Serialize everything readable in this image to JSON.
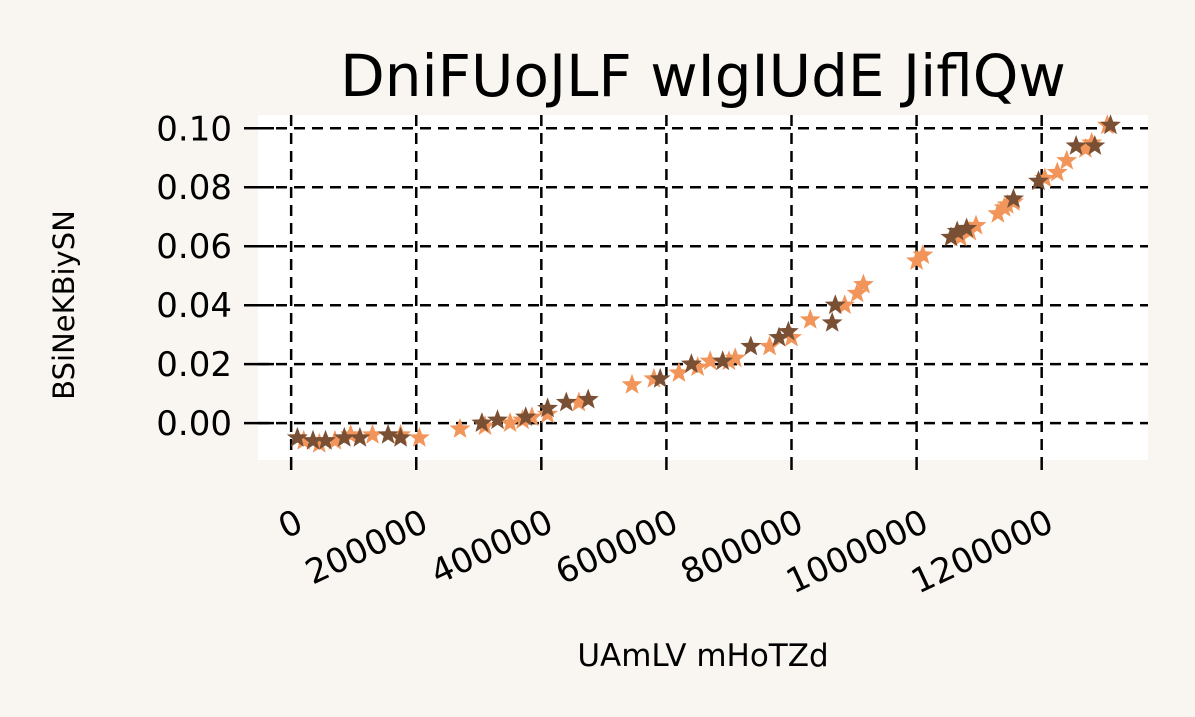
{
  "chart_data": {
    "type": "scatter",
    "title": "DniFUoJLF wIgIUdE JiflQw",
    "xlabel": "UAmLV mHoTZd",
    "ylabel": "BSiNeKBiySN",
    "xlim": [
      -53000,
      1370000
    ],
    "ylim": [
      -0.0125,
      0.1045
    ],
    "xticks": [
      0,
      200000,
      400000,
      600000,
      800000,
      1000000,
      1200000
    ],
    "xtick_labels": [
      "0",
      "200000",
      "400000",
      "600000",
      "800000",
      "1000000",
      "1200000"
    ],
    "yticks": [
      0.0,
      0.02,
      0.04,
      0.06,
      0.08,
      0.1
    ],
    "ytick_labels": [
      "0.00",
      "0.02",
      "0.04",
      "0.06",
      "0.08",
      "0.10"
    ],
    "grid": true,
    "marker": "star",
    "colors": {
      "light": "#f2955b",
      "dark": "#7a5034",
      "background": "#f9f6f1",
      "plot_bg": "#ffffff"
    },
    "series": [
      {
        "color": "light",
        "x": [
          20000,
          45000,
          70000,
          95000,
          130000,
          175000,
          205000,
          270000,
          310000,
          350000,
          370000,
          385000,
          410000,
          460000,
          545000,
          580000,
          620000,
          650000,
          670000,
          700000,
          710000,
          765000,
          800000,
          830000,
          885000,
          905000,
          915000,
          1000000,
          1010000,
          1070000,
          1085000,
          1095000,
          1130000,
          1140000,
          1145000,
          1155000,
          1205000,
          1225000,
          1240000,
          1270000,
          1280000,
          1305000
        ],
        "y": [
          -0.006,
          -0.007,
          -0.006,
          -0.004,
          -0.004,
          -0.004,
          -0.005,
          -0.002,
          -0.001,
          0.0,
          0.001,
          0.002,
          0.003,
          0.007,
          0.013,
          0.015,
          0.017,
          0.019,
          0.021,
          0.021,
          0.022,
          0.026,
          0.029,
          0.035,
          0.04,
          0.044,
          0.047,
          0.055,
          0.057,
          0.063,
          0.065,
          0.067,
          0.071,
          0.073,
          0.074,
          0.075,
          0.083,
          0.085,
          0.089,
          0.093,
          0.095,
          0.101
        ]
      },
      {
        "color": "dark",
        "x": [
          10000,
          35000,
          55000,
          85000,
          110000,
          155000,
          175000,
          305000,
          330000,
          375000,
          410000,
          440000,
          475000,
          590000,
          640000,
          690000,
          735000,
          780000,
          795000,
          865000,
          870000,
          1055000,
          1065000,
          1080000,
          1155000,
          1195000,
          1255000,
          1285000,
          1310000
        ],
        "y": [
          -0.005,
          -0.006,
          -0.006,
          -0.005,
          -0.005,
          -0.004,
          -0.005,
          0.0,
          0.001,
          0.002,
          0.005,
          0.007,
          0.008,
          0.015,
          0.02,
          0.021,
          0.026,
          0.029,
          0.031,
          0.034,
          0.04,
          0.063,
          0.065,
          0.066,
          0.076,
          0.082,
          0.094,
          0.094,
          0.101
        ]
      }
    ]
  }
}
